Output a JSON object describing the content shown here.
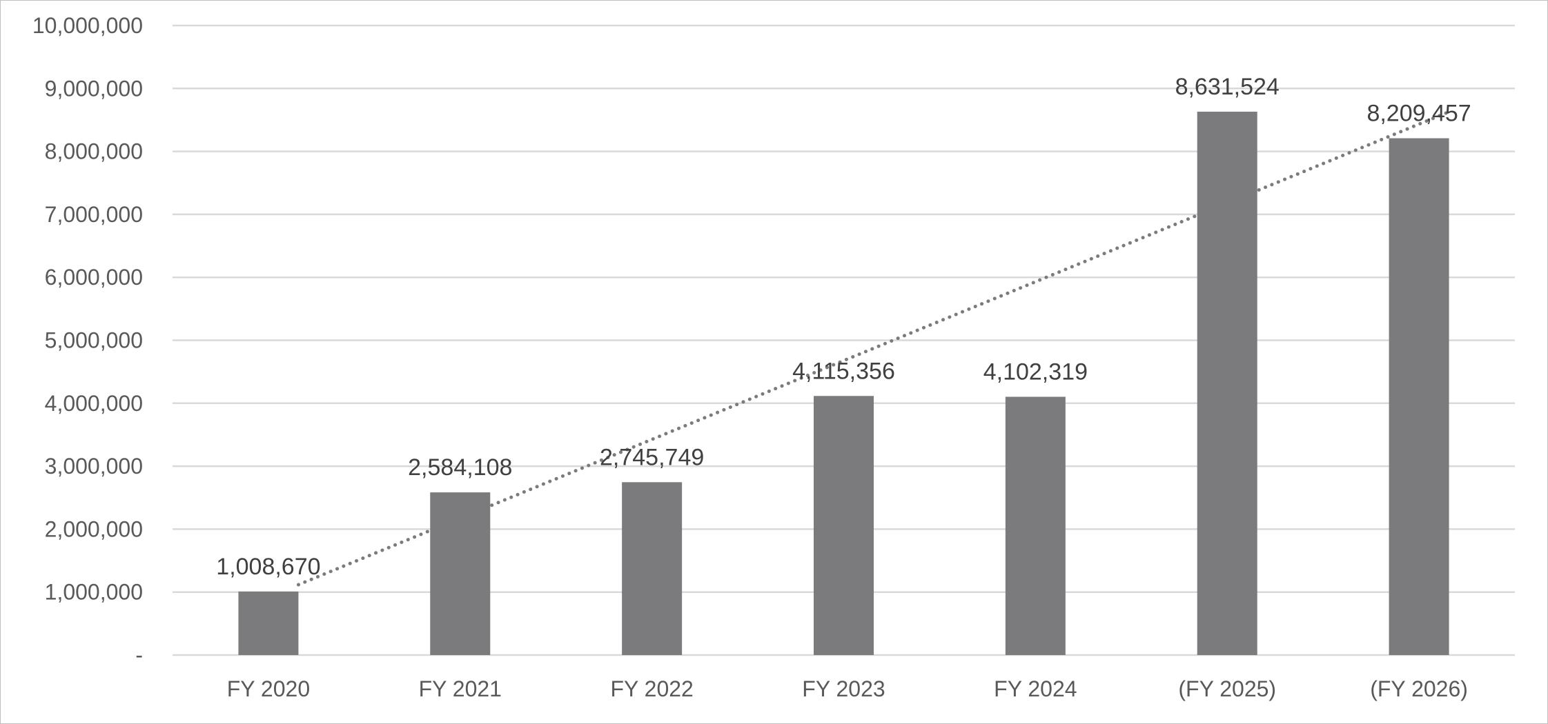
{
  "chart_data": {
    "type": "bar",
    "categories": [
      "FY 2020",
      "FY 2021",
      "FY 2022",
      "FY 2023",
      "FY 2024",
      "(FY 2025)",
      "(FY 2026)"
    ],
    "values": [
      1008670,
      2584108,
      2745749,
      4115356,
      4102319,
      8631524,
      8209457
    ],
    "data_labels": [
      "1,008,670",
      "2,584,108",
      "2,745,749",
      "4,115,356",
      "4,102,319",
      "8,631,524",
      "8,209,457"
    ],
    "y_ticks": [
      0,
      1000000,
      2000000,
      3000000,
      4000000,
      5000000,
      6000000,
      7000000,
      8000000,
      9000000,
      10000000
    ],
    "y_tick_labels": [
      "-",
      "1,000,000",
      "2,000,000",
      "3,000,000",
      "4,000,000",
      "5,000,000",
      "6,000,000",
      "7,000,000",
      "8,000,000",
      "9,000,000",
      "10,000,000"
    ],
    "ylim": [
      0,
      10000000
    ],
    "title": "",
    "xlabel": "",
    "ylabel": "",
    "grid": true,
    "legend": "none",
    "bar_color": "#7b7b7e",
    "trendline": {
      "type": "linear",
      "style": "dotted",
      "color": "#7b7b7e"
    }
  }
}
